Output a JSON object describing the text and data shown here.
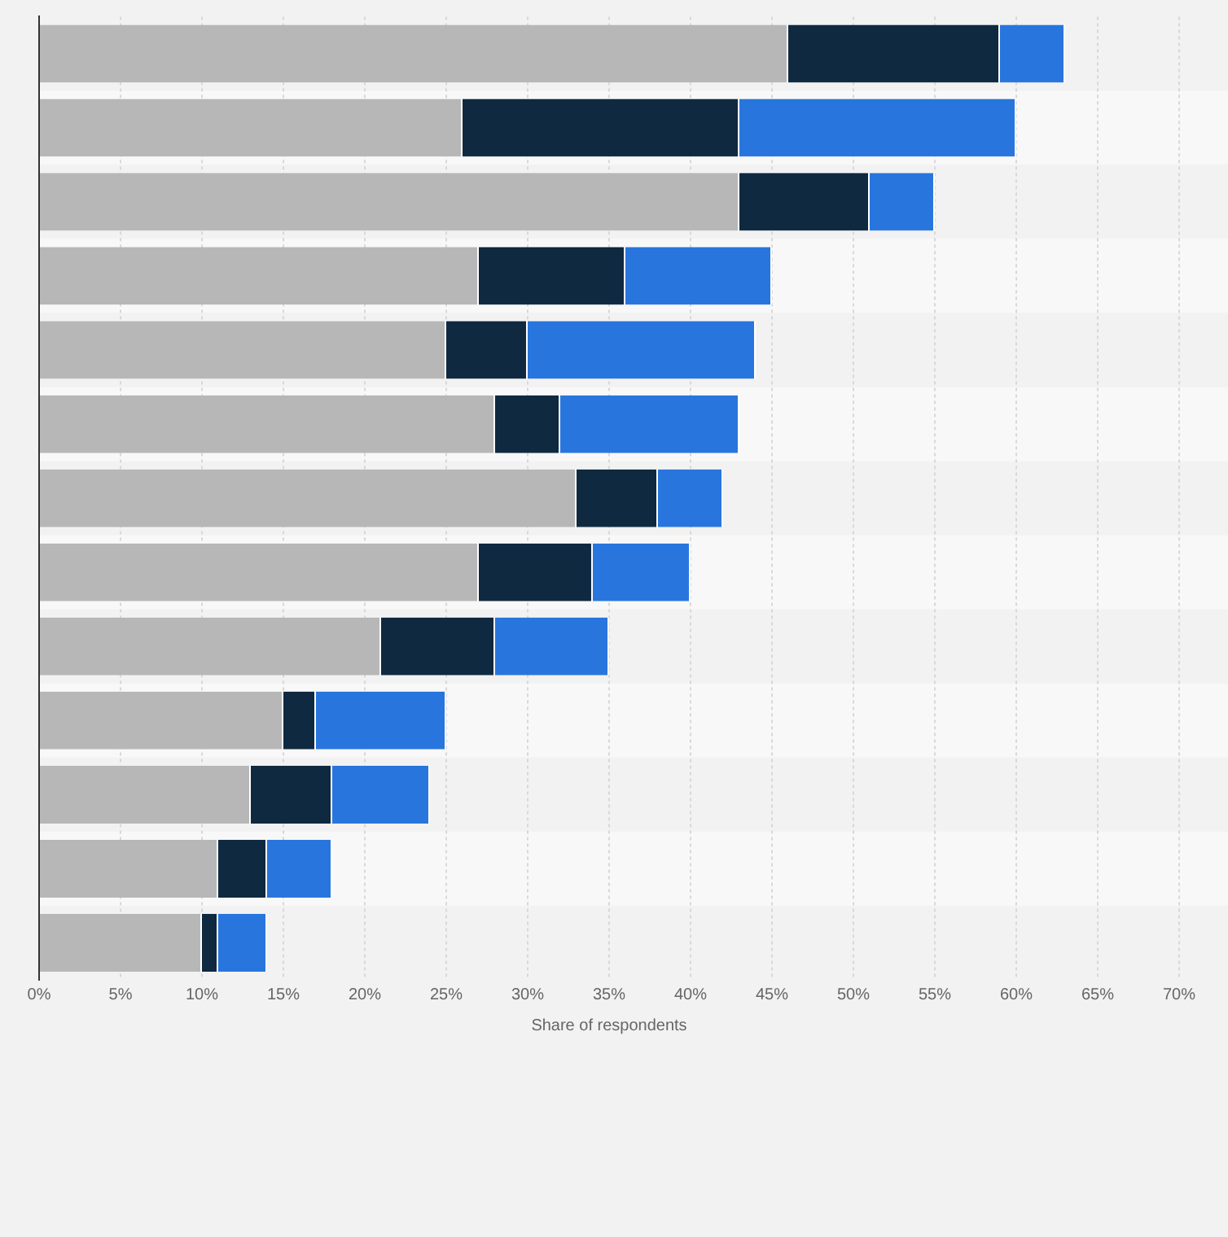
{
  "chart_data": {
    "type": "bar",
    "orientation": "horizontal",
    "stacked": true,
    "xlabel": "Share of respondents",
    "categories": [
      null,
      null,
      null,
      null,
      null,
      null,
      null,
      null,
      null,
      null,
      null,
      null,
      null
    ],
    "series": [
      {
        "color": "#b7b7b7",
        "values": [
          46,
          26,
          43,
          27,
          25,
          28,
          33,
          27,
          21,
          15,
          13,
          11,
          10
        ]
      },
      {
        "color": "#0f2940",
        "values": [
          13,
          17,
          8,
          9,
          5,
          4,
          5,
          7,
          7,
          2,
          5,
          3,
          1
        ]
      },
      {
        "color": "#2876dd",
        "values": [
          4,
          17,
          4,
          9,
          14,
          11,
          4,
          6,
          7,
          8,
          6,
          4,
          3
        ]
      }
    ],
    "xlim": [
      0,
      70
    ],
    "xticks": [
      {
        "value": 0,
        "label": "0%"
      },
      {
        "value": 5,
        "label": "5%"
      },
      {
        "value": 10,
        "label": "10%"
      },
      {
        "value": 15,
        "label": "15%"
      },
      {
        "value": 20,
        "label": "20%"
      },
      {
        "value": 25,
        "label": "25%"
      },
      {
        "value": 30,
        "label": "30%"
      },
      {
        "value": 35,
        "label": "35%"
      },
      {
        "value": 40,
        "label": "40%"
      },
      {
        "value": 45,
        "label": "45%"
      },
      {
        "value": 50,
        "label": "50%"
      },
      {
        "value": 55,
        "label": "55%"
      },
      {
        "value": 60,
        "label": "60%"
      },
      {
        "value": 65,
        "label": "65%"
      },
      {
        "value": 70,
        "label": "70%"
      }
    ],
    "grid": "x",
    "legend": false
  }
}
